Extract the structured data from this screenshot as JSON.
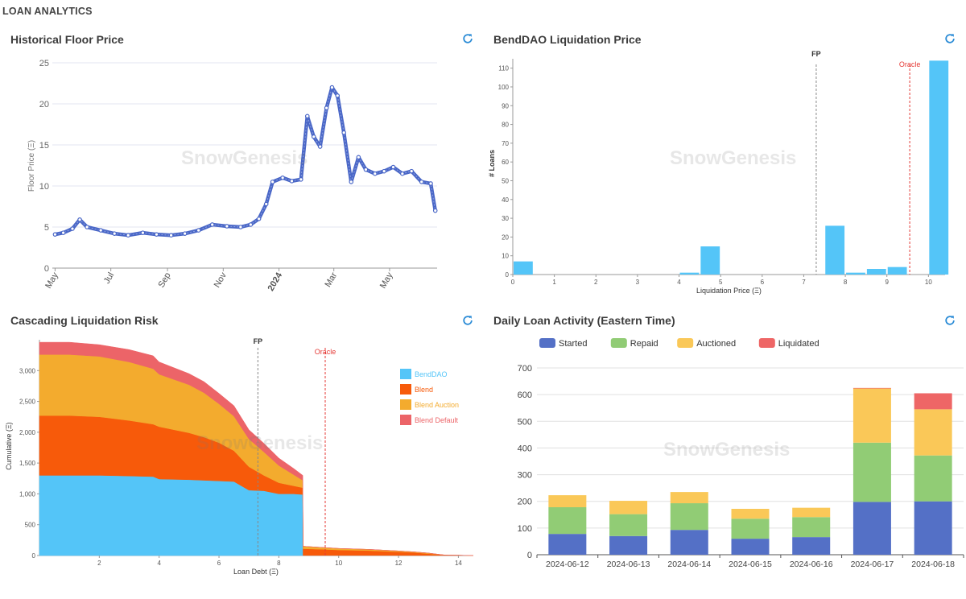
{
  "page": {
    "title": "LOAN ANALYTICS",
    "watermark": "SnowGenesis"
  },
  "icons": {
    "refresh": "refresh-icon",
    "refresh_color": "#2a8bd6"
  },
  "panels": {
    "floor": {
      "title": "Historical Floor Price"
    },
    "liq": {
      "title": "BendDAO Liquidation Price"
    },
    "cascade": {
      "title": "Cascading Liquidation Risk"
    },
    "daily": {
      "title": "Daily Loan Activity (Eastern Time)"
    }
  },
  "chart_data": [
    {
      "id": "floor",
      "type": "line",
      "title": "Historical Floor Price",
      "ylabel": "Floor Price (Ξ)",
      "xlabel": "",
      "ylim": [
        0,
        25
      ],
      "yticks": [
        0,
        5,
        10,
        15,
        20,
        25
      ],
      "xticks": [
        "May",
        "Jul",
        "Sep",
        "Nov",
        "2024",
        "Mar",
        "May"
      ],
      "xtick_bold": [
        false,
        false,
        false,
        false,
        true,
        false,
        false
      ],
      "grid": true,
      "color": "#4a67c7",
      "x": [
        "2023-05-01",
        "2023-05-10",
        "2023-05-20",
        "2023-05-28",
        "2023-06-05",
        "2023-06-20",
        "2023-07-05",
        "2023-07-20",
        "2023-08-05",
        "2023-08-20",
        "2023-09-05",
        "2023-09-20",
        "2023-10-05",
        "2023-10-20",
        "2023-11-05",
        "2023-11-20",
        "2023-12-01",
        "2023-12-10",
        "2023-12-18",
        "2023-12-25",
        "2024-01-05",
        "2024-01-15",
        "2024-01-25",
        "2024-02-01",
        "2024-02-08",
        "2024-02-15",
        "2024-02-22",
        "2024-02-28",
        "2024-03-05",
        "2024-03-12",
        "2024-03-20",
        "2024-03-28",
        "2024-04-05",
        "2024-04-15",
        "2024-04-25",
        "2024-05-05",
        "2024-05-15",
        "2024-05-25",
        "2024-06-05",
        "2024-06-15",
        "2024-06-20"
      ],
      "y": [
        4.1,
        4.3,
        4.8,
        5.9,
        5.0,
        4.6,
        4.2,
        4.0,
        4.3,
        4.1,
        4.0,
        4.2,
        4.6,
        5.3,
        5.1,
        5.0,
        5.3,
        6.0,
        7.8,
        10.5,
        11.0,
        10.6,
        10.8,
        18.5,
        16.0,
        14.8,
        19.5,
        22.0,
        21.0,
        16.5,
        10.5,
        13.5,
        12.0,
        11.5,
        11.8,
        12.3,
        11.5,
        11.8,
        10.5,
        10.3,
        7.0
      ]
    },
    {
      "id": "liq",
      "type": "bar",
      "title": "BendDAO Liquidation Price",
      "xlabel": "Liquidation Price (Ξ)",
      "ylabel": "# Loans",
      "ylim": [
        0,
        115
      ],
      "yticks": [
        0,
        10,
        20,
        30,
        40,
        50,
        60,
        70,
        80,
        90,
        100,
        110
      ],
      "xlim": [
        0,
        10.4
      ],
      "xticks": [
        0,
        1,
        2,
        3,
        4,
        5,
        6,
        7,
        8,
        9,
        10
      ],
      "bin_width": 0.5,
      "bin_starts": [
        0,
        4,
        4.5,
        7.5,
        8,
        8.5,
        9,
        10
      ],
      "values": [
        7,
        1,
        15,
        26,
        1,
        3,
        4,
        114
      ],
      "color": "#54c5f8",
      "refs": [
        {
          "label": "FP",
          "x": 7.3,
          "color": "#888888"
        },
        {
          "label": "Oracle",
          "x": 9.55,
          "color": "#e53935"
        }
      ]
    },
    {
      "id": "cascade",
      "type": "area",
      "title": "Cascading Liquidation Risk",
      "xlabel": "Loan Debt (Ξ)",
      "ylabel": "Cumulative (Ξ)",
      "ylim": [
        0,
        3500
      ],
      "yticks": [
        0,
        500,
        1000,
        1500,
        2000,
        2500,
        3000
      ],
      "xlim": [
        0,
        14.5
      ],
      "xticks": [
        2,
        4,
        6,
        8,
        10,
        12,
        14
      ],
      "legend_position": "right",
      "x": [
        0,
        1,
        2,
        3,
        3.8,
        4,
        5,
        5.5,
        6,
        6.5,
        7,
        7.5,
        8,
        8.5,
        8.8,
        8.81,
        9.5,
        10,
        11,
        12,
        12.5,
        13,
        13.5,
        14.5
      ],
      "series": [
        {
          "name": "BendDAO",
          "color": "#54c5f8",
          "values": [
            1300,
            1300,
            1300,
            1290,
            1280,
            1240,
            1230,
            1220,
            1210,
            1200,
            1060,
            1050,
            1000,
            1000,
            990,
            0,
            0,
            0,
            0,
            0,
            0,
            0,
            0,
            0
          ]
        },
        {
          "name": "Blend",
          "color": "#f75a0a",
          "values": [
            970,
            970,
            950,
            900,
            850,
            850,
            760,
            700,
            620,
            500,
            380,
            250,
            180,
            130,
            110,
            110,
            100,
            90,
            80,
            60,
            50,
            30,
            10,
            0
          ]
        },
        {
          "name": "Blend Auction",
          "color": "#f3ab2e",
          "values": [
            990,
            990,
            980,
            950,
            900,
            850,
            780,
            720,
            630,
            560,
            450,
            380,
            280,
            180,
            120,
            40,
            30,
            25,
            20,
            15,
            10,
            10,
            0,
            0
          ]
        },
        {
          "name": "Blend Default",
          "color": "#ec6468",
          "values": [
            200,
            200,
            190,
            200,
            210,
            200,
            180,
            180,
            170,
            170,
            150,
            140,
            120,
            100,
            80,
            0,
            0,
            0,
            0,
            0,
            0,
            0,
            0,
            0
          ]
        }
      ],
      "refs": [
        {
          "label": "FP",
          "x": 7.3,
          "color": "#888888"
        },
        {
          "label": "Oracle",
          "x": 9.55,
          "color": "#e53935"
        }
      ]
    },
    {
      "id": "daily",
      "type": "bar",
      "stacked": true,
      "title": "Daily Loan Activity (Eastern Time)",
      "ylim": [
        0,
        700
      ],
      "yticks": [
        0,
        100,
        200,
        300,
        400,
        500,
        600,
        700
      ],
      "legend_position": "top-left",
      "grid": true,
      "categories": [
        "2024-06-12",
        "2024-06-13",
        "2024-06-14",
        "2024-06-15",
        "2024-06-16",
        "2024-06-17",
        "2024-06-18"
      ],
      "series": [
        {
          "name": "Started",
          "color": "#5470c6",
          "values": [
            78,
            70,
            93,
            60,
            66,
            198,
            200
          ]
        },
        {
          "name": "Repaid",
          "color": "#91cc75",
          "values": [
            100,
            82,
            100,
            75,
            75,
            222,
            172
          ]
        },
        {
          "name": "Auctioned",
          "color": "#fac858",
          "values": [
            45,
            50,
            42,
            37,
            35,
            203,
            173
          ]
        },
        {
          "name": "Liquidated",
          "color": "#ee6666",
          "values": [
            0,
            0,
            0,
            0,
            0,
            2,
            60
          ]
        }
      ]
    }
  ]
}
